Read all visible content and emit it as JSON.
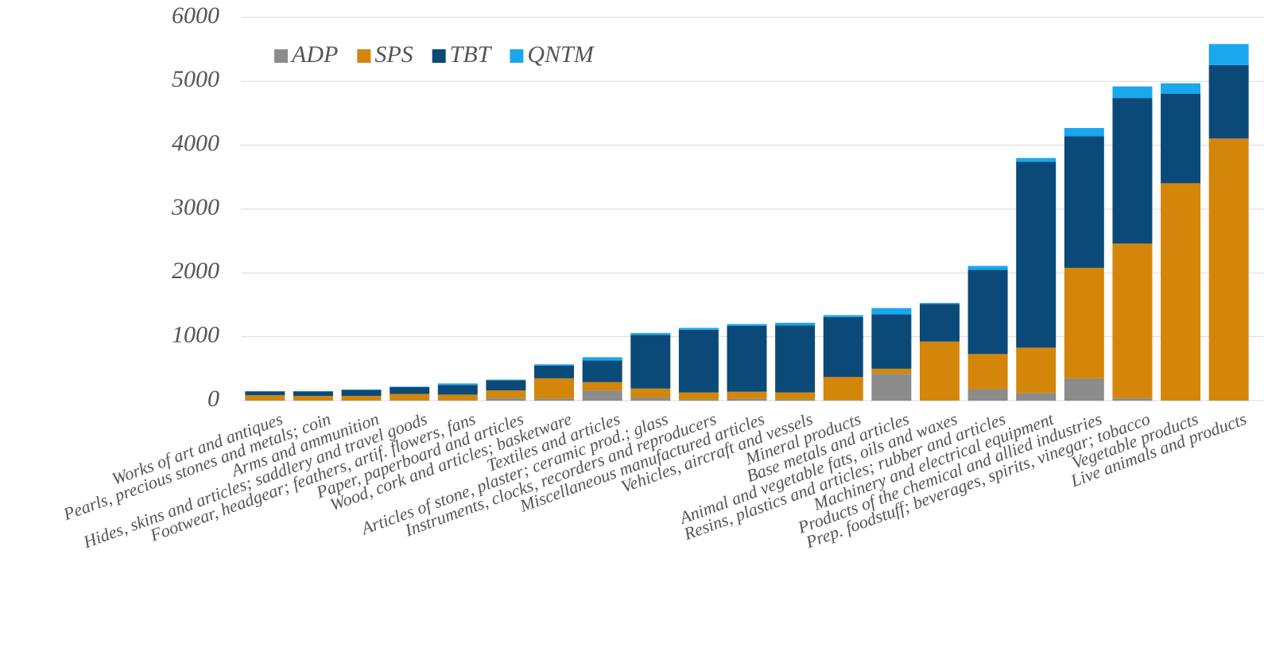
{
  "chart_data": {
    "type": "stacked_bar",
    "categories": [
      "Works of art and antiques",
      "Pearls, precious stones and metals; coin",
      "Arms and ammunition",
      "Hides, skins and articles; saddlery and travel goods",
      "Footwear, headgear; feathers, artif. flowers, fans",
      "Paper, paperboard and articles",
      "Wood, cork and articles; basketware",
      "Textiles and articles",
      "Articles of stone, plaster; ceramic prod.; glass",
      "Instruments, clocks, recorders and reproducers",
      "Miscellaneous manufactured articles",
      "Vehicles, aircraft and vessels",
      "Mineral products",
      "Base metals and articles",
      "Animal and vegetable fats, oils and waxes",
      "Resins, plastics and articles; rubber and articles",
      "Machinery and electrical equipment",
      "Products of the chemical and allied industries",
      "Prep. foodstuff; beverages, spirits, vinegar; tobacco",
      "Vegetable products",
      "Live animals and products"
    ],
    "series": [
      {
        "name": "ADP",
        "color": "#8c8c8c",
        "values": [
          5,
          5,
          5,
          5,
          5,
          40,
          30,
          160,
          50,
          20,
          30,
          20,
          10,
          420,
          5,
          180,
          120,
          350,
          40,
          5,
          5
        ]
      },
      {
        "name": "SPS",
        "color": "#d4860b",
        "values": [
          80,
          70,
          70,
          100,
          90,
          120,
          320,
          130,
          140,
          110,
          110,
          110,
          360,
          80,
          920,
          550,
          710,
          1730,
          2420,
          3400,
          4100
        ]
      },
      {
        "name": "TBT",
        "color": "#0b4a78",
        "values": [
          60,
          70,
          95,
          110,
          150,
          160,
          200,
          340,
          840,
          980,
          1030,
          1050,
          940,
          850,
          590,
          1320,
          2910,
          2060,
          2280,
          1400,
          1150
        ]
      },
      {
        "name": "QNTM",
        "color": "#1aa7ee",
        "values": [
          5,
          5,
          5,
          5,
          25,
          10,
          20,
          50,
          30,
          30,
          30,
          40,
          30,
          100,
          15,
          60,
          60,
          130,
          180,
          165,
          330
        ]
      }
    ],
    "ylim": [
      0,
      6000
    ],
    "yticks": [
      0,
      1000,
      2000,
      3000,
      4000,
      5000,
      6000
    ],
    "grid": true,
    "legend": "top-left"
  }
}
